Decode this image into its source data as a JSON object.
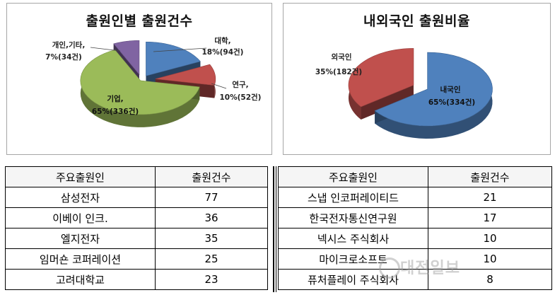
{
  "chart_data": [
    {
      "type": "pie",
      "title": "출원인별 출원건수",
      "slices": [
        {
          "label": "대학,",
          "value": 18,
          "value_label": "18%(94건)",
          "color": "#4f81bd"
        },
        {
          "label": "연구,",
          "value": 10,
          "value_label": "10%(52건)",
          "color": "#c0504d"
        },
        {
          "label": "기업,",
          "value": 65,
          "value_label": "65%(336건)",
          "color": "#9bbb59"
        },
        {
          "label": "개인,기타,",
          "value": 7,
          "value_label": "7%(34건)",
          "color": "#8064a2"
        }
      ]
    },
    {
      "type": "pie",
      "title": "내외국인 출원비율",
      "slices": [
        {
          "label": "내국인",
          "value": 65,
          "value_label": "65%(334건)",
          "color": "#4f81bd"
        },
        {
          "label": "외국인",
          "value": 35,
          "value_label": "35%(182건)",
          "color": "#c0504d"
        }
      ]
    }
  ],
  "table_left": {
    "headers": [
      "주요출원인",
      "출원건수"
    ],
    "rows": [
      [
        "삼성전자",
        "77"
      ],
      [
        "이베이 인크.",
        "36"
      ],
      [
        "엘지전자",
        "35"
      ],
      [
        "임머숀 코퍼레이션",
        "25"
      ],
      [
        "고려대학교",
        "23"
      ]
    ]
  },
  "table_right": {
    "headers": [
      "주요출원인",
      "출원건수"
    ],
    "rows": [
      [
        "스냅 인코퍼레이티드",
        "21"
      ],
      [
        "한국전자통신연구원",
        "17"
      ],
      [
        "넥시스 주식회사",
        "10"
      ],
      [
        "마이크로소프트",
        "10"
      ],
      [
        "퓨처플레이 주식회사",
        "8"
      ]
    ]
  },
  "watermark": "대전일보"
}
